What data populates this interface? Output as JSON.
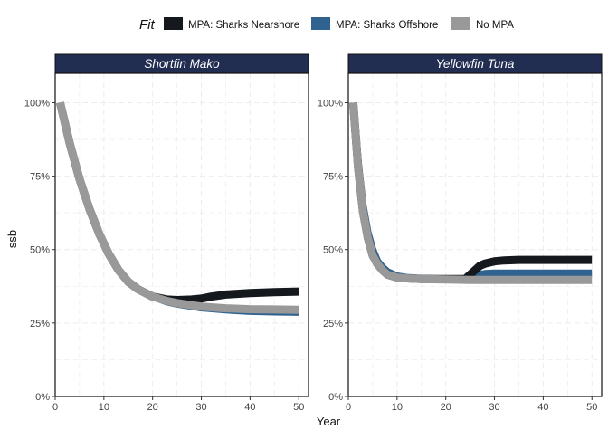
{
  "legend": {
    "title": "Fit",
    "items": [
      {
        "label": "MPA: Sharks Nearshore",
        "color": "#15191d"
      },
      {
        "label": "MPA: Sharks Offshore",
        "color": "#30628f"
      },
      {
        "label": "No MPA",
        "color": "#999999"
      }
    ]
  },
  "x_axis_title": "Year",
  "y_axis_title": "ssb",
  "chart_data": [
    {
      "type": "line",
      "title": "Shortfin Mako",
      "xlabel": "Year",
      "ylabel": "ssb",
      "xlim": [
        0,
        52
      ],
      "ylim": [
        0,
        1.1
      ],
      "x_ticks": [
        0,
        10,
        20,
        30,
        40,
        50
      ],
      "y_ticks": [
        0,
        0.25,
        0.5,
        0.75,
        1.0
      ],
      "y_tick_labels": [
        "0%",
        "25%",
        "50%",
        "75%",
        "100%"
      ],
      "grid": true,
      "series": [
        {
          "name": "MPA: Sharks Offshore",
          "color": "#30628f",
          "x": [
            1,
            3,
            5,
            7,
            9,
            11,
            13,
            15,
            17,
            20,
            23,
            25,
            30,
            35,
            40,
            45,
            50
          ],
          "y": [
            1.0,
            0.86,
            0.74,
            0.64,
            0.555,
            0.485,
            0.43,
            0.39,
            0.365,
            0.34,
            0.322,
            0.315,
            0.302,
            0.295,
            0.29,
            0.288,
            0.287
          ]
        },
        {
          "name": "MPA: Sharks Nearshore",
          "color": "#15191d",
          "x": [
            1,
            3,
            5,
            7,
            9,
            11,
            13,
            15,
            17,
            20,
            23,
            25,
            28,
            30,
            32,
            35,
            40,
            45,
            50
          ],
          "y": [
            1.0,
            0.86,
            0.74,
            0.64,
            0.555,
            0.485,
            0.43,
            0.39,
            0.365,
            0.34,
            0.33,
            0.328,
            0.33,
            0.333,
            0.34,
            0.347,
            0.352,
            0.355,
            0.357
          ]
        },
        {
          "name": "No MPA",
          "color": "#999999",
          "x": [
            1,
            3,
            5,
            7,
            9,
            11,
            13,
            15,
            17,
            20,
            23,
            25,
            30,
            35,
            40,
            45,
            50
          ],
          "y": [
            1.0,
            0.86,
            0.74,
            0.64,
            0.555,
            0.485,
            0.43,
            0.39,
            0.365,
            0.34,
            0.325,
            0.318,
            0.306,
            0.3,
            0.297,
            0.296,
            0.295
          ]
        }
      ]
    },
    {
      "type": "line",
      "title": "Yellowfin Tuna",
      "xlabel": "Year",
      "ylabel": "ssb",
      "xlim": [
        0,
        52
      ],
      "ylim": [
        0,
        1.1
      ],
      "x_ticks": [
        0,
        10,
        20,
        30,
        40,
        50
      ],
      "y_ticks": [
        0,
        0.25,
        0.5,
        0.75,
        1.0
      ],
      "y_tick_labels": [
        "0%",
        "25%",
        "50%",
        "75%",
        "100%"
      ],
      "grid": true,
      "series": [
        {
          "name": "MPA: Sharks Offshore",
          "color": "#30628f",
          "x": [
            1,
            2,
            3,
            4,
            5,
            6,
            7,
            8,
            10,
            12,
            15,
            20,
            24,
            25,
            26,
            27,
            28,
            30,
            35,
            40,
            45,
            50
          ],
          "y": [
            1.0,
            0.8,
            0.65,
            0.56,
            0.5,
            0.46,
            0.44,
            0.425,
            0.41,
            0.405,
            0.402,
            0.4,
            0.4,
            0.405,
            0.41,
            0.415,
            0.418,
            0.42,
            0.42,
            0.42,
            0.42,
            0.42
          ]
        },
        {
          "name": "MPA: Sharks Nearshore",
          "color": "#15191d",
          "x": [
            1,
            2,
            3,
            4,
            5,
            6,
            7,
            8,
            10,
            12,
            15,
            20,
            24,
            25,
            26,
            27,
            28,
            30,
            32,
            35,
            40,
            45,
            50
          ],
          "y": [
            1.0,
            0.78,
            0.63,
            0.54,
            0.48,
            0.45,
            0.43,
            0.415,
            0.405,
            0.402,
            0.4,
            0.4,
            0.4,
            0.415,
            0.43,
            0.445,
            0.452,
            0.46,
            0.463,
            0.465,
            0.465,
            0.465,
            0.465
          ]
        },
        {
          "name": "No MPA",
          "color": "#999999",
          "x": [
            1,
            2,
            3,
            4,
            5,
            6,
            7,
            8,
            10,
            12,
            15,
            20,
            25,
            30,
            35,
            40,
            45,
            50
          ],
          "y": [
            1.0,
            0.78,
            0.63,
            0.54,
            0.48,
            0.45,
            0.43,
            0.415,
            0.405,
            0.402,
            0.4,
            0.398,
            0.397,
            0.397,
            0.397,
            0.397,
            0.397,
            0.397
          ]
        }
      ]
    }
  ]
}
